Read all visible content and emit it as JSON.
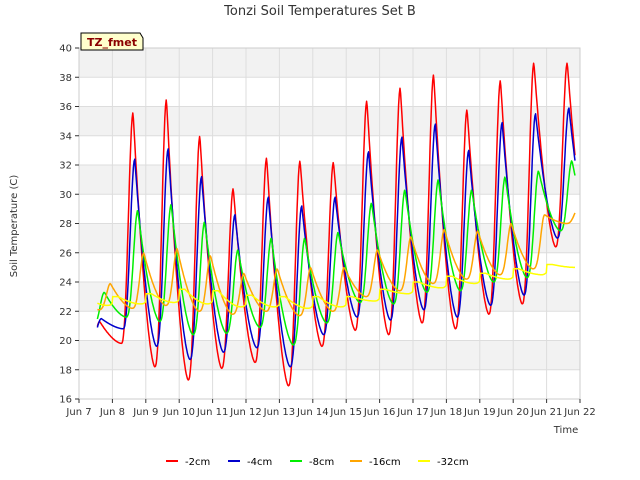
{
  "chart_data": {
    "type": "line",
    "title": "Tonzi Soil Temperatures Set B",
    "badge": "TZ_fmet",
    "xlabel": "Time",
    "ylabel": "Soil Temperature (C)",
    "xlim": [
      7,
      22
    ],
    "ylim": [
      16,
      40
    ],
    "x_ticks": [
      7,
      8,
      9,
      10,
      11,
      12,
      13,
      14,
      15,
      16,
      17,
      18,
      19,
      20,
      21,
      22
    ],
    "x_tick_labels": [
      "Jun 7",
      "Jun 8",
      "Jun 9",
      "Jun 10",
      "Jun 11",
      "Jun 12",
      "Jun 13",
      "Jun 14",
      "Jun 15",
      "Jun 16",
      "Jun 17",
      "Jun 18",
      "Jun 19",
      "Jun 20",
      "Jun 21",
      "Jun 22"
    ],
    "y_ticks": [
      16,
      18,
      20,
      22,
      24,
      26,
      28,
      30,
      32,
      34,
      36,
      38,
      40
    ],
    "y_tick_labels": [
      "16",
      "18",
      "20",
      "22",
      "24",
      "26",
      "28",
      "30",
      "32",
      "34",
      "36",
      "38",
      "40"
    ],
    "grid": true,
    "legend_position": "bottom",
    "days": [
      7,
      8,
      9,
      10,
      11,
      12,
      13,
      14,
      15,
      16,
      17,
      18,
      19,
      20,
      21
    ],
    "series": [
      {
        "name": "-2cm",
        "color": "#ff0000",
        "depth_lag": 0.0,
        "width": 0.22,
        "start": 7.55,
        "end": 21.85,
        "max": [
          21.3,
          35.6,
          36.5,
          34.0,
          30.4,
          32.5,
          32.3,
          32.2,
          36.4,
          37.3,
          38.2,
          35.8,
          37.8,
          39.0,
          39.0
        ],
        "min": [
          18.8,
          19.8,
          18.2,
          17.3,
          18.1,
          18.5,
          16.9,
          19.6,
          20.7,
          20.4,
          21.2,
          20.8,
          21.8,
          22.5,
          26.4
        ]
      },
      {
        "name": "-4cm",
        "color": "#0000cc",
        "depth_lag": 0.05,
        "width": 0.25,
        "start": 7.55,
        "end": 21.85,
        "max": [
          21.5,
          32.4,
          33.1,
          31.2,
          28.6,
          29.8,
          29.2,
          29.8,
          32.9,
          33.9,
          34.8,
          33.0,
          34.9,
          35.5,
          35.9
        ],
        "min": [
          19.8,
          20.8,
          19.6,
          18.7,
          19.2,
          19.5,
          18.2,
          20.4,
          21.6,
          21.4,
          22.1,
          21.6,
          22.4,
          23.1,
          27.0
        ]
      },
      {
        "name": "-8cm",
        "color": "#00ee00",
        "depth_lag": 0.14,
        "width": 0.32,
        "start": 7.55,
        "end": 21.85,
        "max": [
          23.3,
          28.9,
          29.3,
          28.1,
          26.2,
          27.0,
          27.0,
          27.4,
          29.4,
          30.3,
          31.0,
          30.3,
          31.2,
          31.6,
          32.3
        ],
        "min": [
          21.0,
          21.6,
          21.3,
          20.4,
          20.5,
          20.9,
          19.7,
          21.2,
          22.6,
          22.5,
          23.3,
          23.4,
          24.0,
          24.3,
          27.5
        ]
      },
      {
        "name": "-16cm",
        "color": "#ffa500",
        "depth_lag": 0.32,
        "width": 0.45,
        "start": 7.55,
        "end": 21.85,
        "max": [
          23.9,
          26.0,
          26.3,
          25.8,
          24.6,
          24.9,
          25.0,
          25.0,
          26.2,
          27.1,
          27.6,
          27.5,
          28.0,
          28.6,
          29.0
        ],
        "min": [
          22.1,
          22.2,
          22.4,
          22.0,
          21.8,
          22.0,
          21.7,
          22.0,
          23.0,
          23.4,
          23.9,
          24.2,
          24.5,
          24.9,
          28.0
        ]
      },
      {
        "name": "-32cm",
        "color": "#ffff00",
        "depth_lag": 0.55,
        "width": 0.7,
        "start": 7.55,
        "end": 21.85,
        "max": [
          23.0,
          23.2,
          23.5,
          23.4,
          23.1,
          23.0,
          23.0,
          23.0,
          23.5,
          24.0,
          24.4,
          24.6,
          24.9,
          25.2,
          25.6
        ],
        "min": [
          22.4,
          22.5,
          22.6,
          22.5,
          22.3,
          22.3,
          22.2,
          22.3,
          22.7,
          23.2,
          23.6,
          23.9,
          24.2,
          24.5,
          25.0
        ]
      }
    ]
  }
}
